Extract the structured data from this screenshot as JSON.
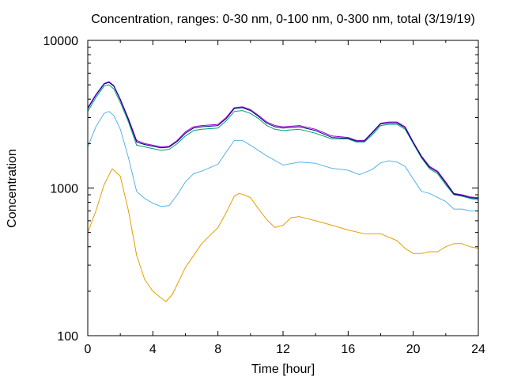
{
  "chart_data": {
    "type": "line",
    "title": "Concentration, ranges: 0-30 nm, 0-100 nm, 0-300 nm, total (3/19/19)",
    "xlabel": "Time [hour]",
    "ylabel": "Concentration",
    "xlim": [
      0,
      24
    ],
    "ylim": [
      100,
      10000
    ],
    "yscale": "log",
    "grid": false,
    "legend": "none",
    "x_ticks": [
      "0",
      "4",
      "8",
      "12",
      "16",
      "20",
      "24"
    ],
    "y_ticks": [
      "100",
      "1000",
      "10000"
    ],
    "series": [
      {
        "color": "#e69f00",
        "x": [
          0,
          0.5,
          1.0,
          1.5,
          2.0,
          2.5,
          3.0,
          3.5,
          4.0,
          4.5,
          4.8,
          5.2,
          6.0,
          7.0,
          8.0,
          8.5,
          9.0,
          9.3,
          9.6,
          10.0,
          10.5,
          11.0,
          11.5,
          12.0,
          12.5,
          13.0,
          13.5,
          14.0,
          15.0,
          16.0,
          17.0,
          18.0,
          19.0,
          19.5,
          20.0,
          20.5,
          21.0,
          21.5,
          22.0,
          22.5,
          23.0,
          23.5,
          24.0
        ],
        "y": [
          500,
          700,
          1050,
          1350,
          1200,
          700,
          350,
          240,
          200,
          180,
          170,
          190,
          290,
          420,
          540,
          680,
          880,
          920,
          900,
          860,
          720,
          610,
          540,
          560,
          630,
          640,
          620,
          600,
          560,
          520,
          490,
          490,
          440,
          390,
          360,
          360,
          370,
          370,
          400,
          420,
          420,
          400,
          390
        ]
      },
      {
        "color": "#56b4e9",
        "x": [
          0,
          0.5,
          1.0,
          1.3,
          1.6,
          2.0,
          2.5,
          3.0,
          3.5,
          4.0,
          4.5,
          5.0,
          5.5,
          6.0,
          6.5,
          7.0,
          8.0,
          8.5,
          9.0,
          9.5,
          10.0,
          11.0,
          12.0,
          13.0,
          14.0,
          15.0,
          16.0,
          16.7,
          17.5,
          18.0,
          18.5,
          19.0,
          19.5,
          20.0,
          20.5,
          21.0,
          22.0,
          22.5,
          23.0,
          23.5,
          24.0
        ],
        "y": [
          1900,
          2600,
          3200,
          3300,
          3100,
          2500,
          1600,
          950,
          850,
          790,
          750,
          760,
          900,
          1100,
          1250,
          1300,
          1450,
          1750,
          2100,
          2100,
          1950,
          1650,
          1430,
          1500,
          1470,
          1360,
          1320,
          1230,
          1340,
          1480,
          1530,
          1500,
          1400,
          1150,
          950,
          920,
          810,
          720,
          720,
          700,
          700
        ]
      },
      {
        "color": "#009e73",
        "x": [
          0,
          0.5,
          1.0,
          1.3,
          1.6,
          2.0,
          2.5,
          3.0,
          3.5,
          4.0,
          4.5,
          5.0,
          5.5,
          6.0,
          6.5,
          7.0,
          8.0,
          8.5,
          9.0,
          9.5,
          10.0,
          10.5,
          11.0,
          11.5,
          12.0,
          13.0,
          14.0,
          15.0,
          16.0,
          16.5,
          17.0,
          17.5,
          18.0,
          18.5,
          19.0,
          19.5,
          20.0,
          20.5,
          21.0,
          21.5,
          22.0,
          22.5,
          23.0,
          23.5,
          24.0
        ],
        "y": [
          3300,
          4100,
          4900,
          5000,
          4700,
          3800,
          2800,
          1950,
          1900,
          1850,
          1800,
          1830,
          2000,
          2250,
          2450,
          2500,
          2550,
          2850,
          3300,
          3350,
          3200,
          2950,
          2650,
          2500,
          2450,
          2500,
          2350,
          2150,
          2150,
          2050,
          2050,
          2300,
          2650,
          2700,
          2700,
          2500,
          2000,
          1600,
          1350,
          1250,
          1050,
          900,
          880,
          850,
          830
        ]
      },
      {
        "color": "#9400d3",
        "x": [
          0,
          0.5,
          1.0,
          1.3,
          1.6,
          2.0,
          2.5,
          3.0,
          3.5,
          4.0,
          4.5,
          5.0,
          5.5,
          6.0,
          6.5,
          7.0,
          8.0,
          8.5,
          9.0,
          9.5,
          10.0,
          10.5,
          11.0,
          11.5,
          12.0,
          13.0,
          14.0,
          15.0,
          16.0,
          16.5,
          17.0,
          17.5,
          18.0,
          18.5,
          19.0,
          19.5,
          20.0,
          20.5,
          21.0,
          21.5,
          22.0,
          22.5,
          23.0,
          23.5,
          24.0
        ],
        "y": [
          3500,
          4300,
          5100,
          5250,
          4950,
          4000,
          2950,
          2100,
          2000,
          1950,
          1900,
          1920,
          2100,
          2400,
          2600,
          2650,
          2700,
          3000,
          3500,
          3550,
          3400,
          3100,
          2800,
          2650,
          2600,
          2650,
          2500,
          2250,
          2200,
          2100,
          2100,
          2400,
          2750,
          2800,
          2800,
          2600,
          2050,
          1650,
          1400,
          1300,
          1100,
          920,
          900,
          870,
          860
        ]
      },
      {
        "color": "#000080",
        "x": [
          0,
          0.5,
          1.0,
          1.3,
          1.6,
          2.0,
          2.5,
          3.0,
          3.5,
          4.0,
          4.5,
          5.0,
          5.5,
          6.0,
          6.5,
          7.0,
          8.0,
          8.5,
          9.0,
          9.5,
          10.0,
          10.5,
          11.0,
          11.5,
          12.0,
          13.0,
          14.0,
          15.0,
          16.0,
          16.5,
          17.0,
          17.5,
          18.0,
          18.5,
          19.0,
          19.5,
          20.0,
          20.5,
          21.0,
          21.5,
          22.0,
          22.5,
          23.0,
          23.5,
          24.0
        ],
        "y": [
          3450,
          4250,
          5050,
          5200,
          4900,
          3950,
          2900,
          2050,
          1970,
          1920,
          1870,
          1890,
          2070,
          2350,
          2550,
          2600,
          2650,
          2950,
          3450,
          3500,
          3350,
          3050,
          2750,
          2600,
          2550,
          2600,
          2450,
          2200,
          2170,
          2080,
          2080,
          2370,
          2720,
          2760,
          2760,
          2560,
          2030,
          1630,
          1380,
          1280,
          1080,
          910,
          890,
          860,
          850
        ]
      }
    ]
  }
}
